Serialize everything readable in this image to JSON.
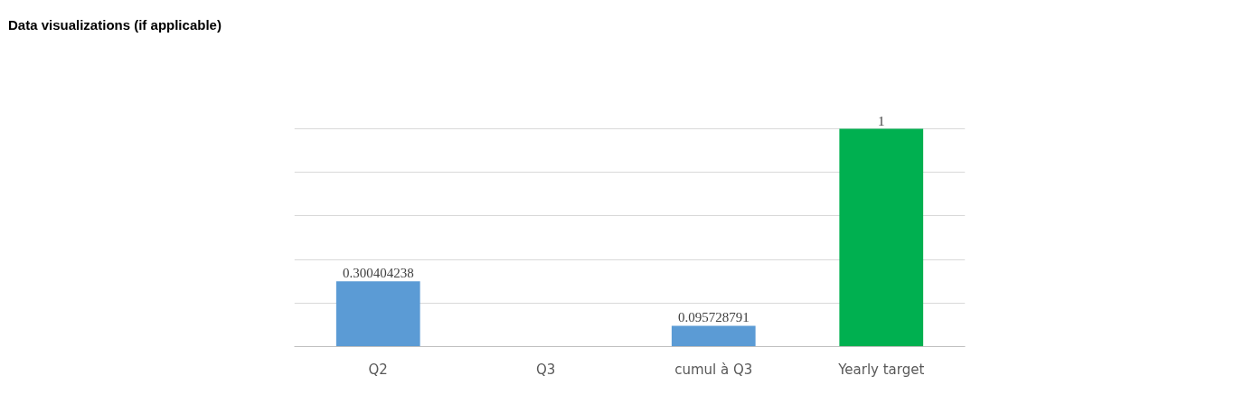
{
  "chart_data": {
    "type": "bar",
    "title": "Data visualizations (if applicable)",
    "categories": [
      "Q2",
      "Q3",
      "cumul à Q3",
      "Yearly target"
    ],
    "values": [
      0.300404238,
      null,
      0.095728791,
      1
    ],
    "colors": [
      "#5b9bd5",
      "#5b9bd5",
      "#5b9bd5",
      "#00b050"
    ],
    "value_labels": [
      "0.300404238",
      null,
      "0.095728791",
      "1"
    ],
    "tick_labels": "x",
    "grid": "y"
  }
}
